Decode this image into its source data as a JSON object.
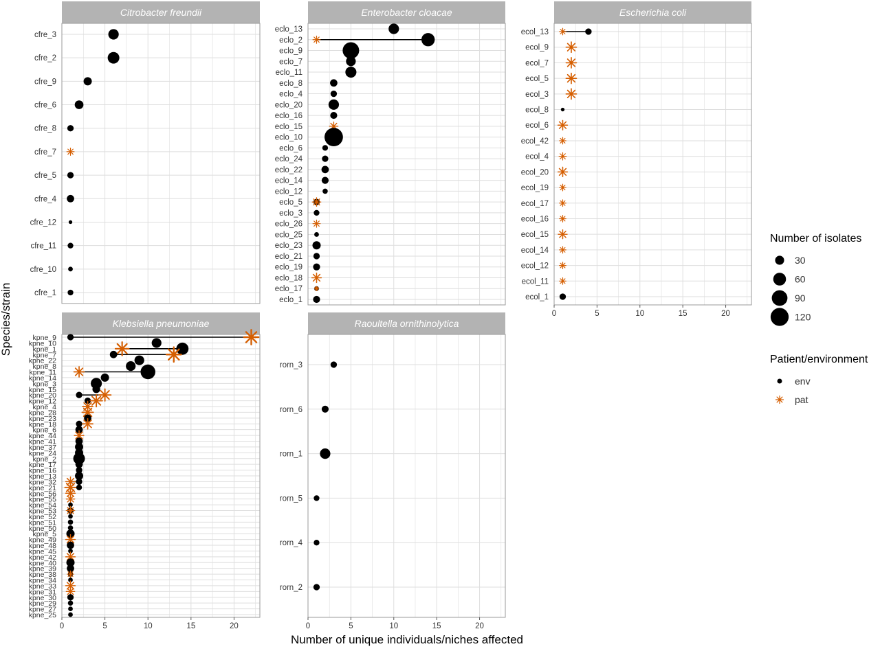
{
  "figure": {
    "ylabel": "Species/strain",
    "xlabel": "Number of unique individuals/niches affected"
  },
  "legend": {
    "size_title": "Number of isolates",
    "size_levels": [
      "30",
      "60",
      "90",
      "120"
    ],
    "shape_title": "Patient/environment",
    "shape_levels": [
      "env",
      "pat"
    ]
  },
  "colors": {
    "env": "#000000",
    "pat": "#d55e00",
    "strip": "#b3b3b3",
    "grid": "#dedede",
    "panel_border": "#999999"
  },
  "chart_data": [
    {
      "type": "scatter",
      "title": "Citrobacter freundii",
      "categories": [
        "cfre_3",
        "cfre_2",
        "cfre_9",
        "cfre_6",
        "cfre_8",
        "cfre_7",
        "cfre_5",
        "cfre_4",
        "cfre_12",
        "cfre_11",
        "cfre_10",
        "cfre_1"
      ],
      "xlim": [
        0,
        23
      ],
      "xticks": [],
      "points": [
        {
          "strain": "cfre_3",
          "type": "env",
          "x": 6,
          "n": 40
        },
        {
          "strain": "cfre_2",
          "type": "env",
          "x": 6,
          "n": 50
        },
        {
          "strain": "cfre_9",
          "type": "env",
          "x": 3,
          "n": 25
        },
        {
          "strain": "cfre_6",
          "type": "env",
          "x": 2,
          "n": 28
        },
        {
          "strain": "cfre_8",
          "type": "env",
          "x": 1,
          "n": 15
        },
        {
          "strain": "cfre_7",
          "type": "pat",
          "x": 1,
          "n": 15
        },
        {
          "strain": "cfre_5",
          "type": "env",
          "x": 1,
          "n": 15
        },
        {
          "strain": "cfre_4",
          "type": "env",
          "x": 1,
          "n": 20
        },
        {
          "strain": "cfre_12",
          "type": "env",
          "x": 1,
          "n": 5
        },
        {
          "strain": "cfre_11",
          "type": "env",
          "x": 1,
          "n": 12
        },
        {
          "strain": "cfre_10",
          "type": "env",
          "x": 1,
          "n": 8
        },
        {
          "strain": "cfre_1",
          "type": "env",
          "x": 1,
          "n": 12
        }
      ]
    },
    {
      "type": "scatter",
      "title": "Enterobacter cloacae",
      "categories": [
        "eclo_13",
        "eclo_2",
        "eclo_9",
        "eclo_7",
        "eclo_11",
        "eclo_8",
        "eclo_4",
        "eclo_20",
        "eclo_16",
        "eclo_15",
        "eclo_10",
        "eclo_6",
        "eclo_24",
        "eclo_22",
        "eclo_14",
        "eclo_12",
        "eclo_5",
        "eclo_3",
        "eclo_26",
        "eclo_25",
        "eclo_23",
        "eclo_21",
        "eclo_19",
        "eclo_18",
        "eclo_17",
        "eclo_1"
      ],
      "xlim": [
        0,
        23
      ],
      "xticks": [],
      "points": [
        {
          "strain": "eclo_13",
          "type": "env",
          "x": 10,
          "n": 40
        },
        {
          "strain": "eclo_2",
          "type": "pat",
          "x": 1,
          "n": 15
        },
        {
          "strain": "eclo_2",
          "type": "env",
          "x": 14,
          "n": 65
        },
        {
          "strain": "eclo_9",
          "type": "env",
          "x": 5,
          "n": 100
        },
        {
          "strain": "eclo_7",
          "type": "env",
          "x": 5,
          "n": 35
        },
        {
          "strain": "eclo_11",
          "type": "env",
          "x": 5,
          "n": 45
        },
        {
          "strain": "eclo_8",
          "type": "env",
          "x": 3,
          "n": 20
        },
        {
          "strain": "eclo_4",
          "type": "env",
          "x": 3,
          "n": 15
        },
        {
          "strain": "eclo_20",
          "type": "env",
          "x": 3,
          "n": 40
        },
        {
          "strain": "eclo_16",
          "type": "env",
          "x": 3,
          "n": 18
        },
        {
          "strain": "eclo_15",
          "type": "pat",
          "x": 3,
          "n": 20
        },
        {
          "strain": "eclo_10",
          "type": "env",
          "x": 3,
          "n": 125
        },
        {
          "strain": "eclo_6",
          "type": "env",
          "x": 2,
          "n": 12
        },
        {
          "strain": "eclo_24",
          "type": "env",
          "x": 2,
          "n": 15
        },
        {
          "strain": "eclo_22",
          "type": "env",
          "x": 2,
          "n": 20
        },
        {
          "strain": "eclo_14",
          "type": "env",
          "x": 2,
          "n": 18
        },
        {
          "strain": "eclo_12",
          "type": "env",
          "x": 2,
          "n": 10
        },
        {
          "strain": "eclo_5",
          "type": "env",
          "x": 1,
          "n": 15
        },
        {
          "strain": "eclo_5",
          "type": "pat",
          "x": 1,
          "n": 20
        },
        {
          "strain": "eclo_3",
          "type": "env",
          "x": 1,
          "n": 12
        },
        {
          "strain": "eclo_26",
          "type": "pat",
          "x": 1,
          "n": 15
        },
        {
          "strain": "eclo_25",
          "type": "env",
          "x": 1,
          "n": 8
        },
        {
          "strain": "eclo_23",
          "type": "env",
          "x": 1,
          "n": 25
        },
        {
          "strain": "eclo_21",
          "type": "env",
          "x": 1,
          "n": 15
        },
        {
          "strain": "eclo_19",
          "type": "env",
          "x": 1,
          "n": 18
        },
        {
          "strain": "eclo_18",
          "type": "pat",
          "x": 1,
          "n": 25
        },
        {
          "strain": "eclo_17",
          "type": "env",
          "x": 1,
          "n": 8
        },
        {
          "strain": "eclo_17",
          "type": "pat",
          "x": 1,
          "n": 5
        },
        {
          "strain": "eclo_1",
          "type": "env",
          "x": 1,
          "n": 18
        }
      ]
    },
    {
      "type": "scatter",
      "title": "Escherichia coli",
      "categories": [
        "ecol_13",
        "ecol_9",
        "ecol_7",
        "ecol_5",
        "ecol_3",
        "ecol_8",
        "ecol_6",
        "ecol_42",
        "ecol_4",
        "ecol_20",
        "ecol_19",
        "ecol_17",
        "ecol_16",
        "ecol_15",
        "ecol_14",
        "ecol_12",
        "ecol_11",
        "ecol_1"
      ],
      "xlim": [
        0,
        23
      ],
      "xticks": [
        "0",
        "5",
        "10",
        "15",
        "20"
      ],
      "points": [
        {
          "strain": "ecol_13",
          "type": "pat",
          "x": 1,
          "n": 12
        },
        {
          "strain": "ecol_13",
          "type": "env",
          "x": 4,
          "n": 15
        },
        {
          "strain": "ecol_9",
          "type": "pat",
          "x": 2,
          "n": 30
        },
        {
          "strain": "ecol_7",
          "type": "pat",
          "x": 2,
          "n": 30
        },
        {
          "strain": "ecol_5",
          "type": "pat",
          "x": 2,
          "n": 30
        },
        {
          "strain": "ecol_3",
          "type": "pat",
          "x": 2,
          "n": 30
        },
        {
          "strain": "ecol_8",
          "type": "env",
          "x": 1,
          "n": 5
        },
        {
          "strain": "ecol_6",
          "type": "pat",
          "x": 1,
          "n": 25
        },
        {
          "strain": "ecol_42",
          "type": "pat",
          "x": 1,
          "n": 12
        },
        {
          "strain": "ecol_4",
          "type": "pat",
          "x": 1,
          "n": 15
        },
        {
          "strain": "ecol_20",
          "type": "pat",
          "x": 1,
          "n": 25
        },
        {
          "strain": "ecol_19",
          "type": "pat",
          "x": 1,
          "n": 12
        },
        {
          "strain": "ecol_17",
          "type": "pat",
          "x": 1,
          "n": 12
        },
        {
          "strain": "ecol_16",
          "type": "pat",
          "x": 1,
          "n": 12
        },
        {
          "strain": "ecol_15",
          "type": "pat",
          "x": 1,
          "n": 22
        },
        {
          "strain": "ecol_14",
          "type": "pat",
          "x": 1,
          "n": 12
        },
        {
          "strain": "ecol_12",
          "type": "pat",
          "x": 1,
          "n": 12
        },
        {
          "strain": "ecol_11",
          "type": "pat",
          "x": 1,
          "n": 12
        },
        {
          "strain": "ecol_1",
          "type": "env",
          "x": 1,
          "n": 15
        }
      ]
    },
    {
      "type": "scatter",
      "title": "Klebsiella pneumoniae",
      "categories": [
        "kpne_9",
        "kpne_10",
        "kpne_1",
        "kpne_7",
        "kpne_22",
        "kpne_8",
        "kpne_11",
        "kpne_14",
        "kpne_3",
        "kpne_15",
        "kpne_20",
        "kpne_12",
        "kpne_4",
        "kpne_28",
        "kpne_23",
        "kpne_18",
        "kpne_6",
        "kpne_44",
        "kpne_41",
        "kpne_37",
        "kpne_24",
        "kpne_2",
        "kpne_17",
        "kpne_16",
        "kpne_13",
        "kpne_32",
        "kpne_21",
        "kpne_56",
        "kpne_55",
        "kpne_54",
        "kpne_53",
        "kpne_52",
        "kpne_51",
        "kpne_50",
        "kpne_5",
        "kpne_49",
        "kpne_48",
        "kpne_45",
        "kpne_42",
        "kpne_40",
        "kpne_39",
        "kpne_38",
        "kpne_34",
        "kpne_33",
        "kpne_31",
        "kpne_30",
        "kpne_29",
        "kpne_27",
        "kpne_25"
      ],
      "xlim": [
        0,
        23
      ],
      "xticks": [
        "0",
        "5",
        "10",
        "15",
        "20"
      ],
      "points": [
        {
          "strain": "kpne_9",
          "type": "env",
          "x": 1,
          "n": 15
        },
        {
          "strain": "kpne_9",
          "type": "pat",
          "x": 22,
          "n": 60
        },
        {
          "strain": "kpne_10",
          "type": "env",
          "x": 11,
          "n": 35
        },
        {
          "strain": "kpne_1",
          "type": "pat",
          "x": 7,
          "n": 50
        },
        {
          "strain": "kpne_1",
          "type": "env",
          "x": 14,
          "n": 55
        },
        {
          "strain": "kpne_7",
          "type": "env",
          "x": 6,
          "n": 20
        },
        {
          "strain": "kpne_7",
          "type": "pat",
          "x": 13,
          "n": 60
        },
        {
          "strain": "kpne_22",
          "type": "env",
          "x": 9,
          "n": 35
        },
        {
          "strain": "kpne_8",
          "type": "env",
          "x": 8,
          "n": 35
        },
        {
          "strain": "kpne_11",
          "type": "pat",
          "x": 2,
          "n": 30
        },
        {
          "strain": "kpne_11",
          "type": "env",
          "x": 10,
          "n": 80
        },
        {
          "strain": "kpne_14",
          "type": "env",
          "x": 5,
          "n": 25
        },
        {
          "strain": "kpne_3",
          "type": "env",
          "x": 4,
          "n": 45
        },
        {
          "strain": "kpne_15",
          "type": "env",
          "x": 4,
          "n": 22
        },
        {
          "strain": "kpne_20",
          "type": "env",
          "x": 2,
          "n": 15
        },
        {
          "strain": "kpne_20",
          "type": "pat",
          "x": 5,
          "n": 40
        },
        {
          "strain": "kpne_12",
          "type": "env",
          "x": 3,
          "n": 15
        },
        {
          "strain": "kpne_12",
          "type": "pat",
          "x": 4,
          "n": 40
        },
        {
          "strain": "kpne_4",
          "type": "pat",
          "x": 3,
          "n": 30
        },
        {
          "strain": "kpne_28",
          "type": "pat",
          "x": 3,
          "n": 35
        },
        {
          "strain": "kpne_23",
          "type": "env",
          "x": 3,
          "n": 20
        },
        {
          "strain": "kpne_18",
          "type": "env",
          "x": 2,
          "n": 15
        },
        {
          "strain": "kpne_18",
          "type": "pat",
          "x": 3,
          "n": 30
        },
        {
          "strain": "kpne_6",
          "type": "env",
          "x": 2,
          "n": 20
        },
        {
          "strain": "kpne_44",
          "type": "pat",
          "x": 2,
          "n": 25
        },
        {
          "strain": "kpne_41",
          "type": "env",
          "x": 2,
          "n": 20
        },
        {
          "strain": "kpne_37",
          "type": "env",
          "x": 2,
          "n": 25
        },
        {
          "strain": "kpne_24",
          "type": "env",
          "x": 2,
          "n": 25
        },
        {
          "strain": "kpne_2",
          "type": "env",
          "x": 2,
          "n": 50
        },
        {
          "strain": "kpne_17",
          "type": "env",
          "x": 2,
          "n": 20
        },
        {
          "strain": "kpne_16",
          "type": "env",
          "x": 2,
          "n": 15
        },
        {
          "strain": "kpne_13",
          "type": "env",
          "x": 2,
          "n": 25
        },
        {
          "strain": "kpne_32",
          "type": "pat",
          "x": 1,
          "n": 25
        },
        {
          "strain": "kpne_32",
          "type": "env",
          "x": 2,
          "n": 15
        },
        {
          "strain": "kpne_21",
          "type": "pat",
          "x": 1,
          "n": 35
        },
        {
          "strain": "kpne_21",
          "type": "env",
          "x": 2,
          "n": 12
        },
        {
          "strain": "kpne_56",
          "type": "pat",
          "x": 1,
          "n": 25
        },
        {
          "strain": "kpne_55",
          "type": "pat",
          "x": 1,
          "n": 20
        },
        {
          "strain": "kpne_54",
          "type": "env",
          "x": 1,
          "n": 8
        },
        {
          "strain": "kpne_53",
          "type": "env",
          "x": 1,
          "n": 15
        },
        {
          "strain": "kpne_53",
          "type": "pat",
          "x": 1,
          "n": 20
        },
        {
          "strain": "kpne_52",
          "type": "env",
          "x": 1,
          "n": 8
        },
        {
          "strain": "kpne_51",
          "type": "env",
          "x": 1,
          "n": 10
        },
        {
          "strain": "kpne_50",
          "type": "env",
          "x": 1,
          "n": 10
        },
        {
          "strain": "kpne_5",
          "type": "env",
          "x": 1,
          "n": 25
        },
        {
          "strain": "kpne_49",
          "type": "pat",
          "x": 1,
          "n": 25
        },
        {
          "strain": "kpne_48",
          "type": "env",
          "x": 1,
          "n": 20
        },
        {
          "strain": "kpne_45",
          "type": "env",
          "x": 1,
          "n": 8
        },
        {
          "strain": "kpne_42",
          "type": "pat",
          "x": 1,
          "n": 25
        },
        {
          "strain": "kpne_40",
          "type": "env",
          "x": 1,
          "n": 25
        },
        {
          "strain": "kpne_39",
          "type": "env",
          "x": 1,
          "n": 20
        },
        {
          "strain": "kpne_38",
          "type": "env",
          "x": 1,
          "n": 10
        },
        {
          "strain": "kpne_38",
          "type": "pat",
          "x": 1,
          "n": 12
        },
        {
          "strain": "kpne_34",
          "type": "env",
          "x": 1,
          "n": 8
        },
        {
          "strain": "kpne_33",
          "type": "pat",
          "x": 1,
          "n": 25
        },
        {
          "strain": "kpne_31",
          "type": "pat",
          "x": 1,
          "n": 20
        },
        {
          "strain": "kpne_30",
          "type": "env",
          "x": 1,
          "n": 15
        },
        {
          "strain": "kpne_29",
          "type": "env",
          "x": 1,
          "n": 10
        },
        {
          "strain": "kpne_27",
          "type": "env",
          "x": 1,
          "n": 8
        },
        {
          "strain": "kpne_25",
          "type": "env",
          "x": 1,
          "n": 8
        }
      ]
    },
    {
      "type": "scatter",
      "title": "Raoultella ornithinolytica",
      "categories": [
        "rorn_3",
        "rorn_6",
        "rorn_1",
        "rorn_5",
        "rorn_4",
        "rorn_2"
      ],
      "xlim": [
        0,
        23
      ],
      "xticks": [
        "0",
        "5",
        "10",
        "15",
        "20"
      ],
      "points": [
        {
          "strain": "rorn_3",
          "type": "env",
          "x": 3,
          "n": 15
        },
        {
          "strain": "rorn_6",
          "type": "env",
          "x": 2,
          "n": 18
        },
        {
          "strain": "rorn_1",
          "type": "env",
          "x": 2,
          "n": 40
        },
        {
          "strain": "rorn_5",
          "type": "env",
          "x": 1,
          "n": 12
        },
        {
          "strain": "rorn_4",
          "type": "env",
          "x": 1,
          "n": 12
        },
        {
          "strain": "rorn_2",
          "type": "env",
          "x": 1,
          "n": 15
        }
      ]
    }
  ]
}
